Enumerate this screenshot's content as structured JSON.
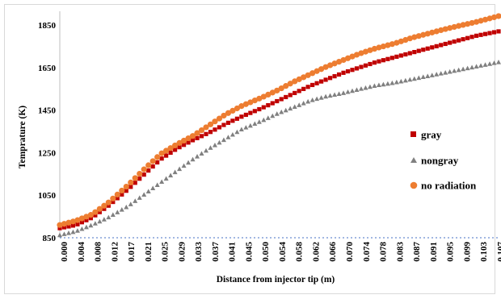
{
  "chart_data": {
    "type": "scatter",
    "title": "",
    "xlabel": "Distance from injector tip (m)",
    "ylabel": "Temprature (K)",
    "ylim": [
      850,
      1900
    ],
    "xlim": [
      0,
      0.1085
    ],
    "yticks": [
      850,
      1050,
      1250,
      1450,
      1650,
      1850
    ],
    "xtick_labels": [
      "0.000",
      "0.004",
      "0.008",
      "0.012",
      "0.017",
      "0.021",
      "0.025",
      "0.029",
      "0.033",
      "0.037",
      "0.041",
      "0.045",
      "0.050",
      "0.054",
      "0.058",
      "0.062",
      "0.066",
      "0.070",
      "0.074",
      "0.078",
      "0.083",
      "0.087",
      "0.091",
      "0.095",
      "0.099",
      "0.103",
      "0.107"
    ],
    "legend_position": "right",
    "series": [
      {
        "name": "gray",
        "color": "#c00000",
        "marker": "square",
        "anchors": [
          [
            0,
            895
          ],
          [
            0.004,
            910
          ],
          [
            0.008,
            945
          ],
          [
            0.012,
            1000
          ],
          [
            0.017,
            1080
          ],
          [
            0.021,
            1150
          ],
          [
            0.025,
            1220
          ],
          [
            0.029,
            1270
          ],
          [
            0.033,
            1310
          ],
          [
            0.037,
            1345
          ],
          [
            0.041,
            1385
          ],
          [
            0.045,
            1420
          ],
          [
            0.05,
            1460
          ],
          [
            0.054,
            1495
          ],
          [
            0.058,
            1530
          ],
          [
            0.062,
            1565
          ],
          [
            0.066,
            1595
          ],
          [
            0.07,
            1625
          ],
          [
            0.074,
            1650
          ],
          [
            0.078,
            1675
          ],
          [
            0.083,
            1700
          ],
          [
            0.087,
            1720
          ],
          [
            0.091,
            1740
          ],
          [
            0.095,
            1760
          ],
          [
            0.099,
            1780
          ],
          [
            0.103,
            1800
          ],
          [
            0.107,
            1815
          ]
        ]
      },
      {
        "name": "nongray",
        "color": "#808080",
        "marker": "triangle",
        "anchors": [
          [
            0,
            862
          ],
          [
            0.004,
            880
          ],
          [
            0.008,
            910
          ],
          [
            0.012,
            945
          ],
          [
            0.017,
            1000
          ],
          [
            0.021,
            1055
          ],
          [
            0.025,
            1110
          ],
          [
            0.029,
            1165
          ],
          [
            0.033,
            1220
          ],
          [
            0.037,
            1270
          ],
          [
            0.041,
            1315
          ],
          [
            0.045,
            1360
          ],
          [
            0.05,
            1400
          ],
          [
            0.054,
            1435
          ],
          [
            0.058,
            1465
          ],
          [
            0.062,
            1495
          ],
          [
            0.066,
            1515
          ],
          [
            0.07,
            1530
          ],
          [
            0.074,
            1548
          ],
          [
            0.078,
            1565
          ],
          [
            0.083,
            1580
          ],
          [
            0.087,
            1595
          ],
          [
            0.091,
            1610
          ],
          [
            0.095,
            1625
          ],
          [
            0.099,
            1640
          ],
          [
            0.103,
            1655
          ],
          [
            0.107,
            1670
          ]
        ]
      },
      {
        "name": "no radiation",
        "color": "#ed7d31",
        "marker": "circle",
        "anchors": [
          [
            0,
            910
          ],
          [
            0.004,
            930
          ],
          [
            0.008,
            960
          ],
          [
            0.012,
            1015
          ],
          [
            0.017,
            1100
          ],
          [
            0.021,
            1175
          ],
          [
            0.025,
            1245
          ],
          [
            0.029,
            1290
          ],
          [
            0.033,
            1330
          ],
          [
            0.037,
            1380
          ],
          [
            0.041,
            1430
          ],
          [
            0.045,
            1470
          ],
          [
            0.05,
            1510
          ],
          [
            0.054,
            1545
          ],
          [
            0.058,
            1585
          ],
          [
            0.062,
            1620
          ],
          [
            0.066,
            1655
          ],
          [
            0.07,
            1685
          ],
          [
            0.074,
            1715
          ],
          [
            0.078,
            1740
          ],
          [
            0.083,
            1765
          ],
          [
            0.087,
            1790
          ],
          [
            0.091,
            1810
          ],
          [
            0.095,
            1830
          ],
          [
            0.099,
            1848
          ],
          [
            0.103,
            1865
          ],
          [
            0.107,
            1885
          ]
        ]
      }
    ]
  }
}
